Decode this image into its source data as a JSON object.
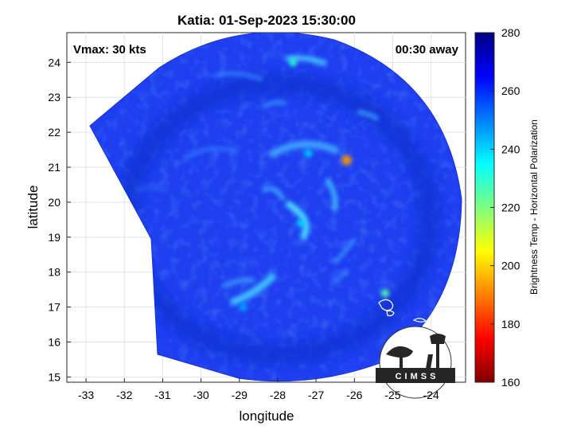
{
  "title": "Katia: 01-Sep-2023 15:30:00",
  "annotations": {
    "vmax": "Vmax: 30 kts",
    "away": "00:30 away"
  },
  "axes": {
    "xlabel": "longitude",
    "ylabel": "latitude",
    "xlim": [
      -33.5,
      -23.1
    ],
    "ylim": [
      14.85,
      24.85
    ],
    "xticks": [
      -33,
      -32,
      -31,
      -30,
      -29,
      -28,
      -27,
      -26,
      -25,
      -24
    ],
    "yticks": [
      15,
      16,
      17,
      18,
      19,
      20,
      21,
      22,
      23,
      24
    ],
    "grid": true
  },
  "colorbar": {
    "label": "Brightness Temp - Horizontal Polarization",
    "min": 160,
    "max": 280,
    "ticks": [
      160,
      180,
      200,
      220,
      240,
      260,
      280
    ],
    "colormap": "jet"
  },
  "colors": {
    "background_scene": "#1e3ef0",
    "deep_blue": "#1030d8",
    "warm_feature": "#ff6a00",
    "cold_feature": "#40e0ff"
  },
  "logo": {
    "text": "CIMSS"
  },
  "chart_data": {
    "type": "heatmap",
    "title": "Katia: 01-Sep-2023 15:30:00",
    "xlabel": "longitude",
    "ylabel": "latitude",
    "xlim": [
      -33.5,
      -23.1
    ],
    "ylim": [
      14.85,
      24.85
    ],
    "value_range": [
      160,
      280
    ],
    "swath_center": [
      -28.0,
      19.8
    ],
    "storm_center": [
      -28.1,
      19.9
    ],
    "features": [
      {
        "lon": -26.2,
        "lat": 21.2,
        "value": 195
      },
      {
        "lon": -25.2,
        "lat": 17.4,
        "value": 225
      },
      {
        "lon": -27.6,
        "lat": 24.0,
        "value": 230
      },
      {
        "lon": -27.2,
        "lat": 21.4,
        "value": 240
      },
      {
        "lon": -27.4,
        "lat": 19.4,
        "value": 240
      },
      {
        "lon": -28.9,
        "lat": 17.0,
        "value": 245
      }
    ],
    "background_value": 262
  }
}
